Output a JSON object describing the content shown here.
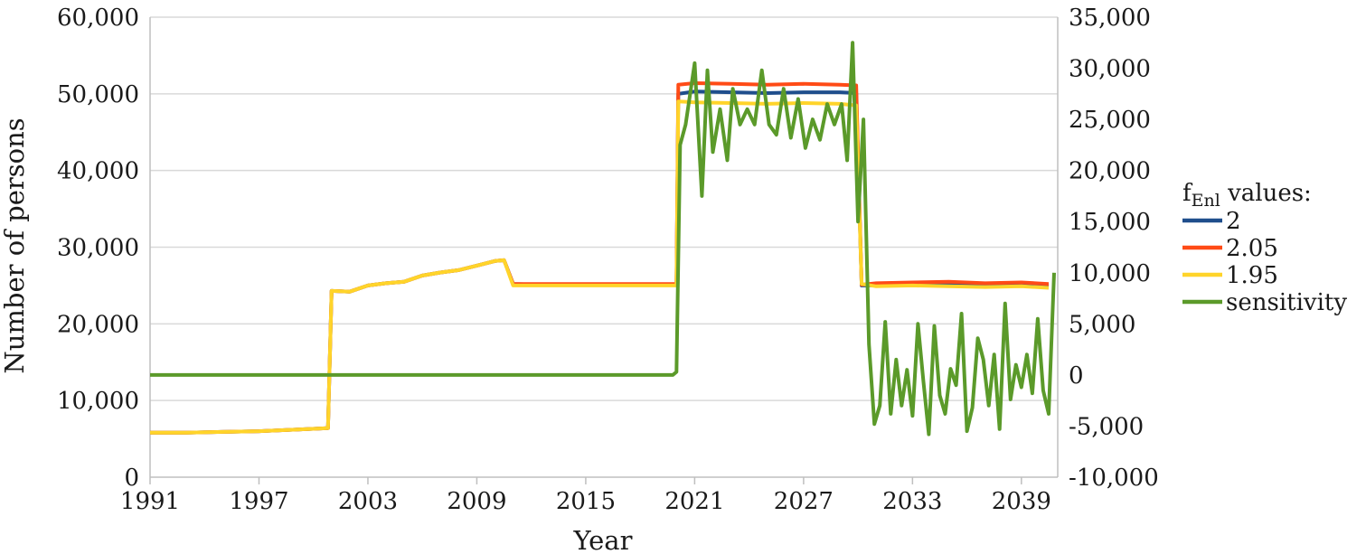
{
  "chart_data": {
    "type": "line",
    "xlabel": "Year",
    "ylabel": "Number of persons",
    "xlim": [
      1991,
      2041
    ],
    "xticks": [
      "1991",
      "1997",
      "2003",
      "2009",
      "2015",
      "2021",
      "2027",
      "2033",
      "2039"
    ],
    "ylim": [
      0,
      60000
    ],
    "yticks": [
      "0",
      "10,000",
      "20,000",
      "30,000",
      "40,000",
      "50,000",
      "60,000"
    ],
    "y2lim": [
      -10000,
      35000
    ],
    "y2ticks": [
      "-10,000",
      "-5,000",
      "0",
      "5,000",
      "10,000",
      "15,000",
      "20,000",
      "25,000",
      "30,000",
      "35,000"
    ],
    "grid": true,
    "legend": {
      "title_main": "f",
      "title_sub": "Enl",
      "title_rest": " values:",
      "placement": "right"
    },
    "series": [
      {
        "name": "2",
        "color": "#1f4e8c",
        "axis": "left",
        "points": [
          [
            1991,
            5800
          ],
          [
            1993,
            5800
          ],
          [
            1995,
            5900
          ],
          [
            1997,
            6000
          ],
          [
            1999,
            6200
          ],
          [
            2000.8,
            6400
          ],
          [
            2001.0,
            24300
          ],
          [
            2002,
            24200
          ],
          [
            2003,
            25000
          ],
          [
            2004,
            25300
          ],
          [
            2005,
            25500
          ],
          [
            2006,
            26300
          ],
          [
            2007,
            26700
          ],
          [
            2008,
            27000
          ],
          [
            2009,
            27600
          ],
          [
            2010,
            28200
          ],
          [
            2010.5,
            28300
          ],
          [
            2011,
            25200
          ],
          [
            2013,
            25100
          ],
          [
            2015,
            25100
          ],
          [
            2017,
            25100
          ],
          [
            2019,
            25100
          ],
          [
            2020.0,
            25100
          ],
          [
            2020.1,
            50000
          ],
          [
            2021,
            50300
          ],
          [
            2023,
            50200
          ],
          [
            2025,
            50100
          ],
          [
            2027,
            50200
          ],
          [
            2029,
            50200
          ],
          [
            2029.9,
            50100
          ],
          [
            2030.2,
            25000
          ],
          [
            2031,
            25000
          ],
          [
            2033,
            25100
          ],
          [
            2035,
            25100
          ],
          [
            2037,
            25000
          ],
          [
            2039,
            25100
          ],
          [
            2040.5,
            24900
          ]
        ]
      },
      {
        "name": "2.05",
        "color": "#ff4b16",
        "axis": "left",
        "points": [
          [
            1991,
            5800
          ],
          [
            1993,
            5800
          ],
          [
            1995,
            5900
          ],
          [
            1997,
            6000
          ],
          [
            1999,
            6200
          ],
          [
            2000.8,
            6400
          ],
          [
            2001.0,
            24300
          ],
          [
            2002,
            24200
          ],
          [
            2003,
            25000
          ],
          [
            2004,
            25300
          ],
          [
            2005,
            25500
          ],
          [
            2006,
            26300
          ],
          [
            2007,
            26700
          ],
          [
            2008,
            27000
          ],
          [
            2009,
            27600
          ],
          [
            2010,
            28200
          ],
          [
            2010.5,
            28300
          ],
          [
            2011,
            25200
          ],
          [
            2013,
            25200
          ],
          [
            2015,
            25200
          ],
          [
            2017,
            25200
          ],
          [
            2019,
            25200
          ],
          [
            2020.0,
            25200
          ],
          [
            2020.1,
            51200
          ],
          [
            2021,
            51400
          ],
          [
            2023,
            51300
          ],
          [
            2025,
            51200
          ],
          [
            2027,
            51300
          ],
          [
            2029,
            51200
          ],
          [
            2029.9,
            51100
          ],
          [
            2030.2,
            25100
          ],
          [
            2031,
            25300
          ],
          [
            2033,
            25400
          ],
          [
            2035,
            25500
          ],
          [
            2037,
            25300
          ],
          [
            2039,
            25400
          ],
          [
            2040.5,
            25200
          ]
        ]
      },
      {
        "name": "1.95",
        "color": "#ffd42a",
        "axis": "left",
        "points": [
          [
            1991,
            5800
          ],
          [
            1993,
            5800
          ],
          [
            1995,
            5900
          ],
          [
            1997,
            6000
          ],
          [
            1999,
            6200
          ],
          [
            2000.8,
            6400
          ],
          [
            2001.0,
            24300
          ],
          [
            2002,
            24200
          ],
          [
            2003,
            25000
          ],
          [
            2004,
            25300
          ],
          [
            2005,
            25500
          ],
          [
            2006,
            26300
          ],
          [
            2007,
            26700
          ],
          [
            2008,
            27000
          ],
          [
            2009,
            27600
          ],
          [
            2010,
            28200
          ],
          [
            2010.5,
            28300
          ],
          [
            2011,
            25000
          ],
          [
            2013,
            25000
          ],
          [
            2015,
            25000
          ],
          [
            2017,
            25000
          ],
          [
            2019,
            25000
          ],
          [
            2020.0,
            25000
          ],
          [
            2020.1,
            49000
          ],
          [
            2021,
            48900
          ],
          [
            2023,
            48800
          ],
          [
            2025,
            48700
          ],
          [
            2027,
            48800
          ],
          [
            2029,
            48700
          ],
          [
            2029.9,
            48500
          ],
          [
            2030.2,
            25200
          ],
          [
            2031,
            24900
          ],
          [
            2033,
            25000
          ],
          [
            2035,
            24900
          ],
          [
            2037,
            24800
          ],
          [
            2039,
            24900
          ],
          [
            2040.5,
            24700
          ]
        ]
      },
      {
        "name": "sensitivity",
        "color": "#5b9a2a",
        "axis": "right",
        "points": [
          [
            1991,
            0
          ],
          [
            2019.8,
            0
          ],
          [
            2020.0,
            300
          ],
          [
            2020.2,
            22500
          ],
          [
            2020.5,
            24500
          ],
          [
            2021.0,
            30500
          ],
          [
            2021.4,
            17500
          ],
          [
            2021.7,
            29800
          ],
          [
            2022.0,
            21800
          ],
          [
            2022.4,
            26000
          ],
          [
            2022.8,
            21000
          ],
          [
            2023.1,
            28000
          ],
          [
            2023.5,
            24500
          ],
          [
            2023.9,
            26000
          ],
          [
            2024.3,
            24500
          ],
          [
            2024.7,
            29800
          ],
          [
            2025.1,
            24500
          ],
          [
            2025.5,
            23500
          ],
          [
            2025.9,
            28000
          ],
          [
            2026.3,
            23200
          ],
          [
            2026.7,
            27000
          ],
          [
            2027.1,
            22200
          ],
          [
            2027.5,
            25000
          ],
          [
            2027.9,
            23000
          ],
          [
            2028.3,
            26500
          ],
          [
            2028.7,
            24500
          ],
          [
            2029.1,
            26500
          ],
          [
            2029.4,
            21000
          ],
          [
            2029.7,
            32500
          ],
          [
            2030.0,
            15000
          ],
          [
            2030.3,
            25000
          ],
          [
            2030.6,
            3000
          ],
          [
            2030.9,
            -4800
          ],
          [
            2031.2,
            -3000
          ],
          [
            2031.5,
            5200
          ],
          [
            2031.8,
            -3800
          ],
          [
            2032.1,
            1500
          ],
          [
            2032.4,
            -3000
          ],
          [
            2032.7,
            500
          ],
          [
            2033.0,
            -4000
          ],
          [
            2033.3,
            5000
          ],
          [
            2033.6,
            -600
          ],
          [
            2033.9,
            -5800
          ],
          [
            2034.2,
            4800
          ],
          [
            2034.5,
            -2000
          ],
          [
            2034.8,
            -3800
          ],
          [
            2035.1,
            600
          ],
          [
            2035.4,
            -1000
          ],
          [
            2035.7,
            6000
          ],
          [
            2036.0,
            -5500
          ],
          [
            2036.3,
            -3200
          ],
          [
            2036.6,
            3600
          ],
          [
            2036.9,
            1500
          ],
          [
            2037.2,
            -3000
          ],
          [
            2037.5,
            2000
          ],
          [
            2037.8,
            -5300
          ],
          [
            2038.1,
            7000
          ],
          [
            2038.4,
            -2400
          ],
          [
            2038.7,
            1000
          ],
          [
            2039.0,
            -1200
          ],
          [
            2039.3,
            2000
          ],
          [
            2039.6,
            -1800
          ],
          [
            2039.9,
            5500
          ],
          [
            2040.2,
            -1500
          ],
          [
            2040.5,
            -3800
          ],
          [
            2040.8,
            10000
          ]
        ]
      }
    ]
  }
}
